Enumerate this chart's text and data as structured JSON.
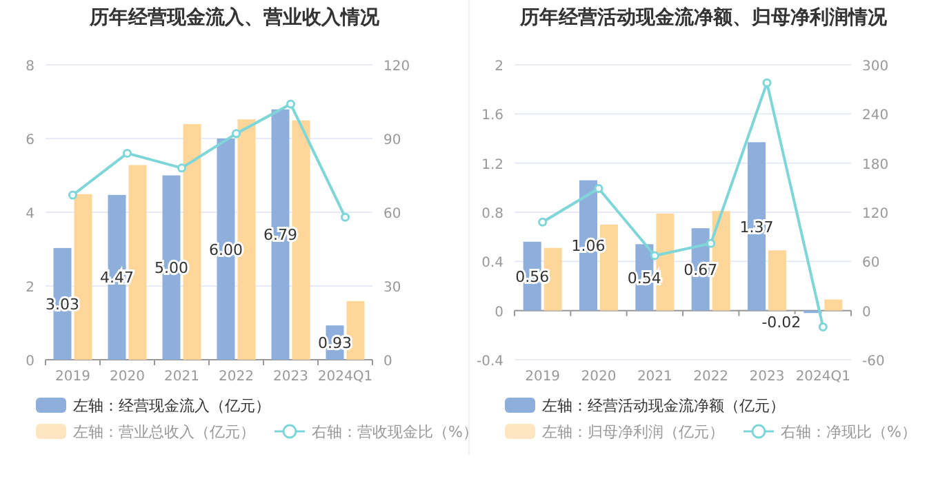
{
  "chart_data": [
    {
      "type": "bar",
      "title": "历年经营现金流入、营业收入情况",
      "categories": [
        "2019",
        "2020",
        "2021",
        "2022",
        "2023",
        "2024Q1"
      ],
      "ylim": [
        0,
        8
      ],
      "yticks": [
        0,
        2,
        4,
        6,
        8
      ],
      "y2lim": [
        0,
        120
      ],
      "y2ticks": [
        0,
        30,
        60,
        90,
        120
      ],
      "grid": "y",
      "legend": "bottom",
      "series": [
        {
          "name": "左轴：经营现金流入（亿元）",
          "color": "#8eaedc",
          "values": [
            3.03,
            4.47,
            5.0,
            6.0,
            6.79,
            0.93
          ],
          "value_labels": [
            "3.03",
            "4.47",
            "5.00",
            "6.00",
            "6.79",
            "0.93"
          ]
        },
        {
          "name": "左轴：营业总收入（亿元）",
          "color": "#ffd699",
          "values": [
            4.49,
            5.28,
            6.39,
            6.52,
            6.49,
            1.59
          ]
        },
        {
          "name": "右轴：营收现金比（%）",
          "type": "line",
          "axis": "y2",
          "color": "#7fd6d9",
          "marker": "circle",
          "values": [
            67,
            84,
            78,
            92,
            104,
            58
          ]
        }
      ]
    },
    {
      "type": "bar",
      "title": "历年经营活动现金流净额、归母净利润情况",
      "categories": [
        "2019",
        "2020",
        "2021",
        "2022",
        "2023",
        "2024Q1"
      ],
      "ylim": [
        -0.4,
        2
      ],
      "yticks": [
        -0.4,
        0,
        0.4,
        0.8,
        1.2,
        1.6,
        2
      ],
      "y2lim": [
        -60,
        300
      ],
      "y2ticks": [
        -60,
        0,
        60,
        120,
        180,
        240,
        300
      ],
      "grid": "y",
      "legend": "bottom",
      "series": [
        {
          "name": "左轴：经营活动现金流净额（亿元）",
          "color": "#8eaedc",
          "values": [
            0.56,
            1.06,
            0.54,
            0.67,
            1.37,
            -0.02
          ],
          "value_labels": [
            "0.56",
            "1.06",
            "0.54",
            "0.67",
            "1.37",
            "-0.02"
          ]
        },
        {
          "name": "左轴：归母净利润（亿元）",
          "color": "#ffd699",
          "values": [
            0.51,
            0.7,
            0.79,
            0.81,
            0.49,
            0.09
          ]
        },
        {
          "name": "右轴：净现比（%）",
          "type": "line",
          "axis": "y2",
          "color": "#7fd6d9",
          "marker": "circle",
          "values": [
            108,
            149,
            67,
            82,
            278,
            -20
          ]
        }
      ]
    }
  ]
}
